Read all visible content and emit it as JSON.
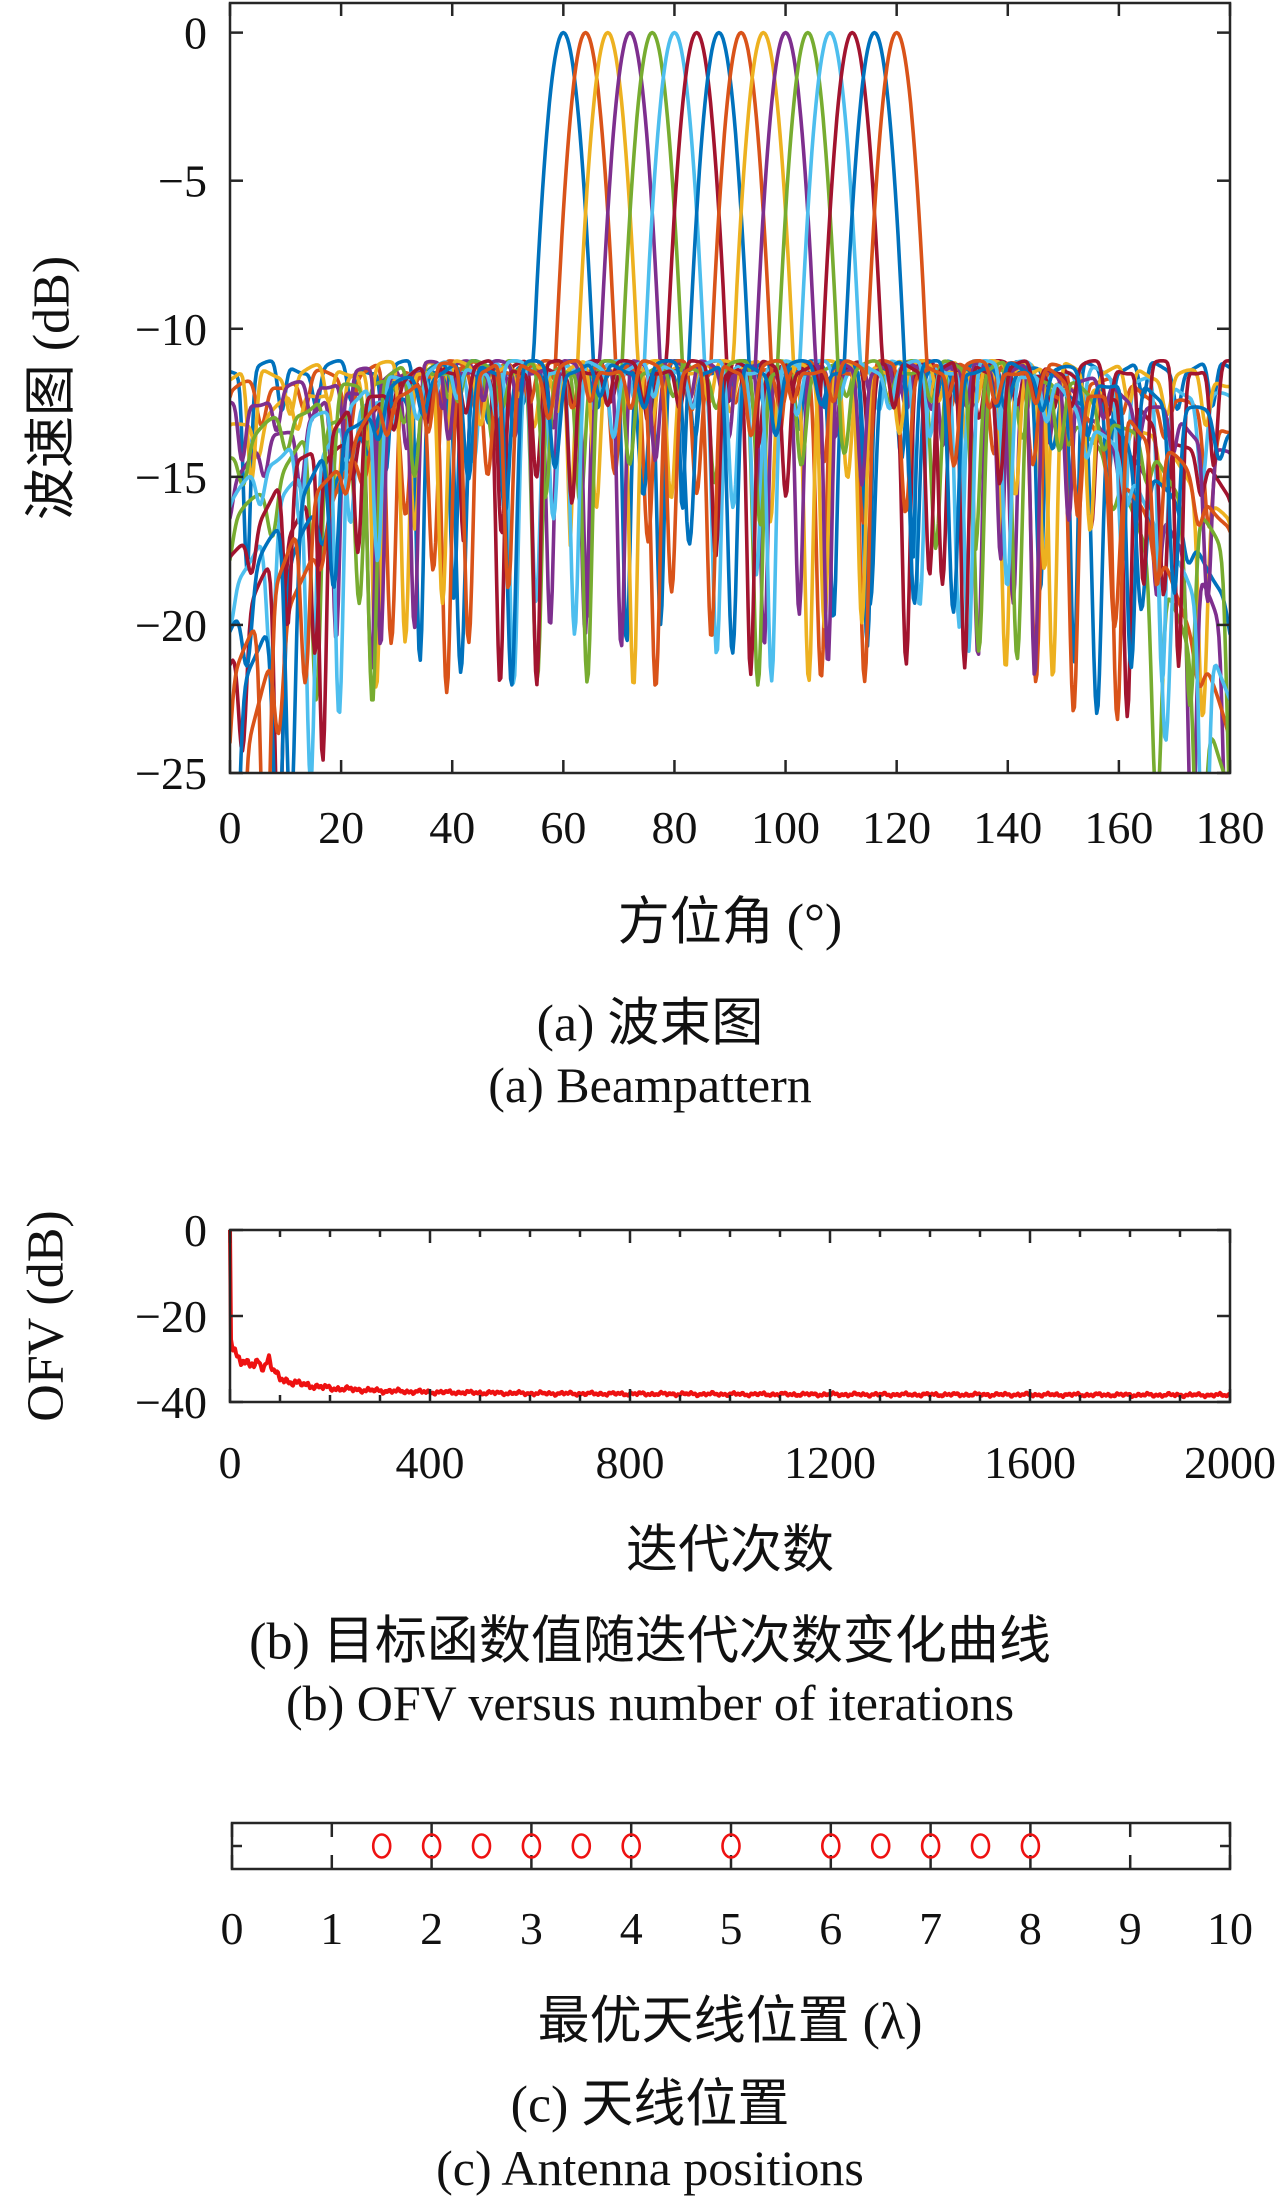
{
  "figure": {
    "panels": [
      {
        "caption_zh": "(a) 波束图",
        "caption_en": "(a) Beampattern"
      },
      {
        "caption_zh": "(b) 目标函数值随迭代次数变化曲线",
        "caption_en": "(b) OFV versus number of iterations"
      },
      {
        "caption_zh": "(c) 天线位置",
        "caption_en": "(c) Antenna positions"
      }
    ]
  },
  "chart_data": [
    {
      "id": "beampattern",
      "type": "line",
      "xlabel": "方位角 (°)",
      "ylabel": "波速图 (dB)",
      "xlim": [
        0,
        180
      ],
      "ylim": [
        -25,
        1
      ],
      "xticks": [
        0,
        20,
        40,
        60,
        80,
        100,
        120,
        140,
        160,
        180
      ],
      "yticks": [
        0,
        -5,
        -10,
        -15,
        -20,
        -25
      ],
      "grid": false,
      "legend": null,
      "description": "16 overlaid multi-beam patterns steered from 60 to 120 degrees in 4-degree steps; main lobes reach 0 dB, sidelobes capped near -11 dB with deep ripple nulls",
      "beam_directions_deg": [
        60,
        64,
        68,
        72,
        76,
        80,
        84,
        88,
        92,
        96,
        100,
        104,
        108,
        112,
        116,
        120
      ],
      "peak_db": 0,
      "sidelobe_level_db": -10.9,
      "mainlobe_parabola_coeff": 0.38,
      "color_cycle": [
        "#0072BD",
        "#D95319",
        "#EDB120",
        "#7E2F8E",
        "#77AC30",
        "#4DBEEE",
        "#A2142F"
      ]
    },
    {
      "id": "ofv-convergence",
      "type": "line",
      "xlabel": "迭代次数",
      "ylabel": "OFV (dB)",
      "xlim": [
        0,
        2000
      ],
      "ylim": [
        -40,
        0
      ],
      "xticks": [
        0,
        400,
        800,
        1200,
        1600,
        2000
      ],
      "xtick_minor_step": 100,
      "yticks": [
        0,
        -20,
        -40
      ],
      "grid": false,
      "color": "#ee1111",
      "series": [
        {
          "name": "OFV",
          "keypoints_x_iter_y_db": [
            [
              0,
              0
            ],
            [
              2,
              -25.5
            ],
            [
              6,
              -27.5
            ],
            [
              12,
              -28.8
            ],
            [
              20,
              -29.8
            ],
            [
              30,
              -30.8
            ],
            [
              40,
              -31.3
            ],
            [
              50,
              -31.8
            ],
            [
              57,
              -30.2
            ],
            [
              63,
              -31.8
            ],
            [
              70,
              -31.6
            ],
            [
              78,
              -29.5
            ],
            [
              85,
              -32.5
            ],
            [
              100,
              -34.6
            ],
            [
              125,
              -35.4
            ],
            [
              150,
              -36.0
            ],
            [
              200,
              -36.8
            ],
            [
              300,
              -37.4
            ],
            [
              400,
              -37.7
            ],
            [
              600,
              -38.0
            ],
            [
              800,
              -38.1
            ],
            [
              1200,
              -38.25
            ],
            [
              1600,
              -38.3
            ],
            [
              2000,
              -38.4
            ]
          ]
        }
      ],
      "converged_value_db": -38.4
    },
    {
      "id": "antenna-positions",
      "type": "scatter",
      "xlabel": "最优天线位置 (λ)",
      "xlim": [
        0,
        10
      ],
      "xticks": [
        0,
        1,
        2,
        3,
        4,
        5,
        6,
        7,
        8,
        9,
        10
      ],
      "marker": "circle",
      "color": "#ee1111",
      "antenna_positions_lambda": [
        1.5,
        2,
        2.5,
        3,
        3.5,
        4,
        5,
        6,
        6.5,
        7,
        7.5,
        8
      ]
    }
  ]
}
